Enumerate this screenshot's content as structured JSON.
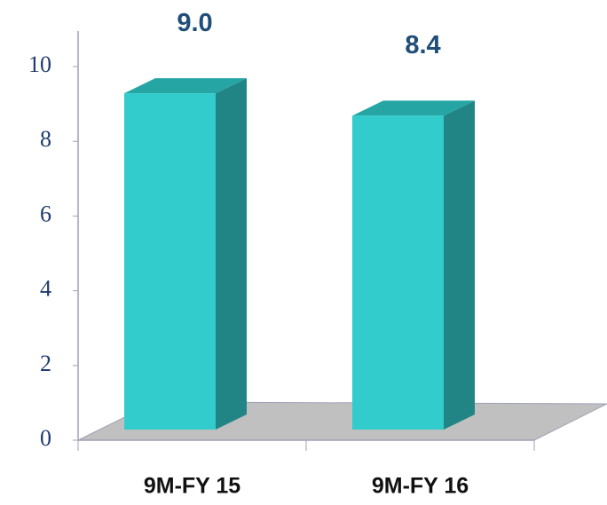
{
  "chart_data": {
    "type": "bar3d",
    "categories": [
      "9M-FY 15",
      "9M-FY 16"
    ],
    "values": [
      9.0,
      8.4
    ],
    "value_labels": [
      "9.0",
      "8.4"
    ],
    "color": "#33cccc",
    "ylim": [
      0,
      10
    ],
    "yticks": [
      0,
      2,
      4,
      6,
      8,
      10
    ]
  }
}
